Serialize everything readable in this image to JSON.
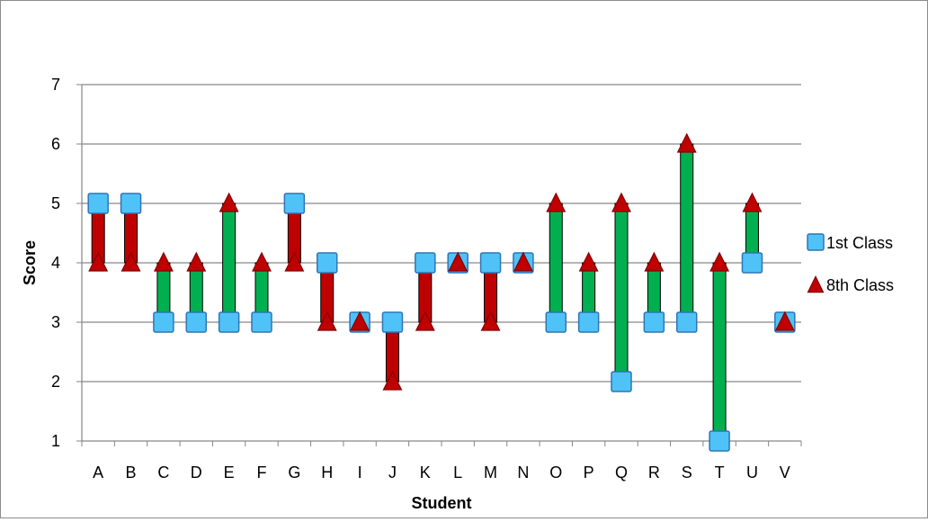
{
  "chart_data": {
    "type": "scatter",
    "title": "",
    "xlabel": "Student",
    "ylabel": "Score",
    "ylim": [
      1,
      7
    ],
    "y_ticks": [
      "1",
      "2",
      "3",
      "4",
      "5",
      "6",
      "7"
    ],
    "grid": "horizontal",
    "legend_position": "right",
    "categories": [
      "A",
      "B",
      "C",
      "D",
      "E",
      "F",
      "G",
      "H",
      "I",
      "J",
      "K",
      "L",
      "M",
      "N",
      "O",
      "P",
      "Q",
      "R",
      "S",
      "T",
      "U",
      "V"
    ],
    "series": [
      {
        "name": "1st Class",
        "marker": "square",
        "color": "#4fc3f7",
        "values": [
          5,
          5,
          3,
          3,
          3,
          3,
          5,
          4,
          3,
          3,
          4,
          4,
          4,
          4,
          3,
          3,
          2,
          3,
          3,
          1,
          4,
          3
        ]
      },
      {
        "name": "8th Class",
        "marker": "triangle",
        "color": "#c00000",
        "values": [
          4,
          4,
          4,
          4,
          5,
          4,
          4,
          3,
          3,
          2,
          3,
          4,
          3,
          4,
          5,
          4,
          5,
          4,
          6,
          4,
          5,
          3
        ]
      }
    ],
    "change_bars": {
      "increase_color": "#00b050",
      "decrease_color": "#c00000"
    }
  }
}
